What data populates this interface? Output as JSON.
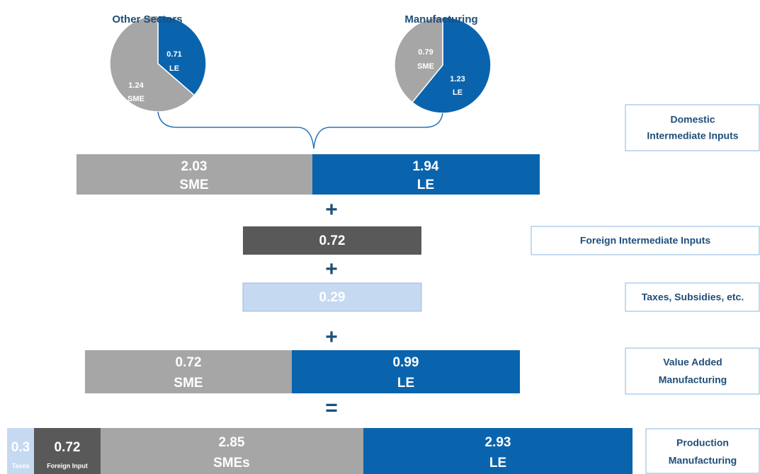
{
  "pies": [
    {
      "title": "Other Sectors",
      "slices": [
        {
          "value": 0.71,
          "label": "LE"
        },
        {
          "value": 1.24,
          "label": "SME"
        }
      ]
    },
    {
      "title": "Manufacturing",
      "slices": [
        {
          "value": 1.23,
          "label": "LE"
        },
        {
          "value": 0.79,
          "label": "SME"
        }
      ]
    }
  ],
  "bars": [
    [
      {
        "value": 2.03,
        "label": "SME"
      },
      {
        "value": 1.94,
        "label": "LE"
      }
    ],
    [
      {
        "value": 0.72
      }
    ],
    [
      {
        "value": 0.29
      }
    ],
    [
      {
        "value": 0.72,
        "label": "SME"
      },
      {
        "value": 0.99,
        "label": "LE"
      }
    ],
    [
      {
        "value": 0.3,
        "label": "Taxes"
      },
      {
        "value": 0.72,
        "label": "Foreign Input"
      },
      {
        "value": 2.85,
        "label": "SMEs"
      },
      {
        "value": 2.93,
        "label": "LE"
      }
    ]
  ],
  "operators": [
    "+",
    "+",
    "+",
    "="
  ],
  "boxes": [
    [
      "Domestic",
      "Intermediate Inputs"
    ],
    [
      "Foreign Intermediate Inputs"
    ],
    [
      "Taxes, Subsidies, etc."
    ],
    [
      "Value Added",
      "Manufacturing"
    ],
    [
      "Production",
      "Manufacturing"
    ]
  ]
}
